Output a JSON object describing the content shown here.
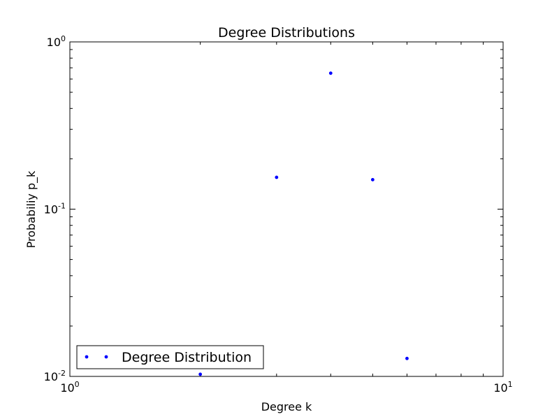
{
  "chart_data": {
    "type": "scatter",
    "title": "Degree Distributions",
    "xlabel": "Degree k",
    "ylabel": "Probabiliy p_k",
    "xscale": "log",
    "yscale": "log",
    "xlim": [
      1,
      10
    ],
    "ylim": [
      0.01,
      1
    ],
    "x_ticks": [
      {
        "value": 1,
        "base": "10",
        "exp": "0"
      },
      {
        "value": 10,
        "base": "10",
        "exp": "1"
      }
    ],
    "y_ticks": [
      {
        "value": 0.01,
        "base": "10",
        "exp": "-2"
      },
      {
        "value": 0.1,
        "base": "10",
        "exp": "-1"
      },
      {
        "value": 1,
        "base": "10",
        "exp": "0"
      }
    ],
    "series": [
      {
        "name": "Degree Distribution",
        "color": "#0000ff",
        "marker": "point",
        "points": [
          {
            "x": 2,
            "y": 0.0103
          },
          {
            "x": 3,
            "y": 0.155
          },
          {
            "x": 4,
            "y": 0.65
          },
          {
            "x": 5,
            "y": 0.15
          },
          {
            "x": 6,
            "y": 0.0128
          }
        ]
      }
    ],
    "legend": {
      "position": "lower-left",
      "label": "Degree Distribution"
    },
    "grid": false
  }
}
